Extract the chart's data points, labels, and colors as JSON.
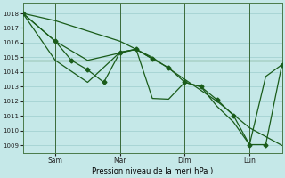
{
  "background_color": "#c5e8e8",
  "grid_color": "#9ecece",
  "line_color": "#1a5c1a",
  "marker_color": "#1a5c1a",
  "ylabel": "Pression niveau de la mer( hPa )",
  "ylim": [
    1008.5,
    1018.7
  ],
  "yticks": [
    1009,
    1010,
    1011,
    1012,
    1013,
    1014,
    1015,
    1016,
    1017,
    1018
  ],
  "x_tick_labels": [
    "Sam",
    "Mar",
    "Dim",
    "Lun"
  ],
  "x_tick_positions": [
    12,
    36,
    60,
    84
  ],
  "vline_positions": [
    12,
    36,
    60,
    84
  ],
  "vline_color": "#3a6a3a",
  "xlim": [
    0,
    96
  ],
  "smooth_descent_x": [
    0,
    12,
    24,
    36,
    48,
    60,
    72,
    84,
    96
  ],
  "smooth_descent_y": [
    1018.0,
    1017.5,
    1016.8,
    1016.1,
    1015.0,
    1013.5,
    1012.0,
    1010.2,
    1009.0
  ],
  "flat_line_x": [
    0,
    96
  ],
  "flat_line_y": [
    1014.8,
    1014.8
  ],
  "upper_segment_x": [
    0,
    12,
    24,
    36,
    42,
    48
  ],
  "upper_segment_y": [
    1018.0,
    1016.1,
    1014.8,
    1015.3,
    1015.55,
    1014.9
  ],
  "jagged_x": [
    0,
    12,
    18,
    24,
    30,
    36,
    42,
    48,
    54,
    60,
    66,
    72,
    78,
    84,
    90,
    96
  ],
  "jagged_y": [
    1018.0,
    1016.1,
    1014.8,
    1014.15,
    1013.3,
    1015.35,
    1015.55,
    1014.9,
    1014.3,
    1013.3,
    1013.0,
    1012.1,
    1011.05,
    1009.05,
    1009.05,
    1014.5
  ],
  "second_line_x": [
    0,
    12,
    24,
    36,
    42,
    48,
    54,
    60,
    66,
    72,
    78,
    84,
    90,
    96
  ],
  "second_line_y": [
    1018.0,
    1014.8,
    1013.3,
    1015.35,
    1015.55,
    1012.2,
    1012.15,
    1013.3,
    1013.0,
    1011.65,
    1010.6,
    1009.05,
    1013.7,
    1014.5
  ]
}
